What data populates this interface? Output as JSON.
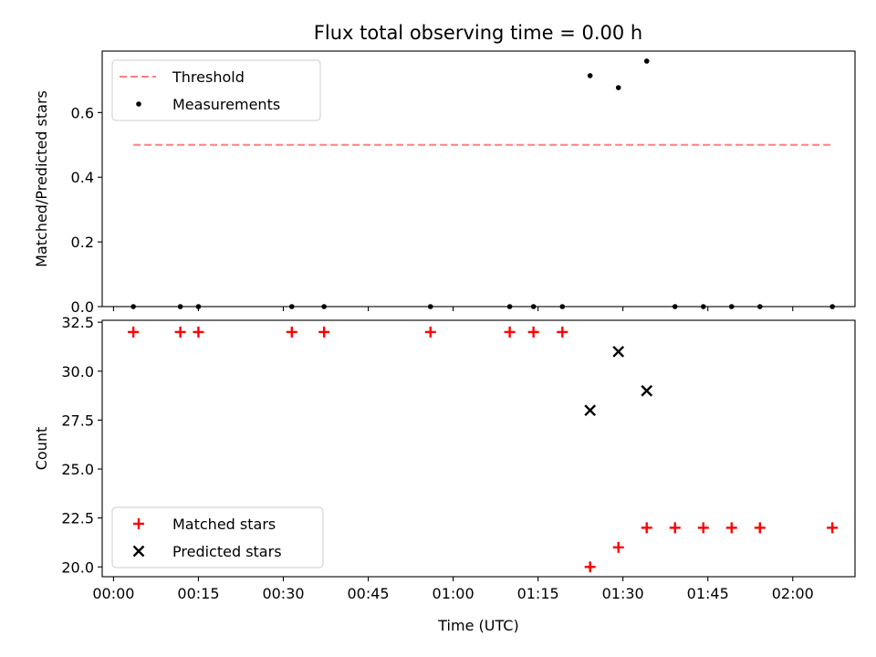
{
  "title": "Flux total observing time = 0.00 h",
  "chart_data": [
    {
      "type": "scatter",
      "ylabel": "Matched/Predicted stars",
      "xlabel": "",
      "xlim": [
        -2,
        131
      ],
      "ylim": [
        0,
        0.79
      ],
      "yticks": [
        0.0,
        0.2,
        0.4,
        0.6
      ],
      "ytick_labels": [
        "0.0",
        "0.2",
        "0.4",
        "0.6"
      ],
      "xticks": [
        0,
        15,
        30,
        45,
        60,
        75,
        90,
        105,
        120
      ],
      "legend": {
        "position": "upper-left",
        "entries": [
          {
            "label": "Threshold",
            "style": "dashed-line",
            "color": "#ff7f7f"
          },
          {
            "label": "Measurements",
            "style": "dot",
            "color": "#000000"
          }
        ]
      },
      "series": [
        {
          "name": "Threshold",
          "kind": "line",
          "color": "#ff7f7f",
          "x": [
            3.5,
            127
          ],
          "y": [
            0.5,
            0.5
          ]
        },
        {
          "name": "Measurements",
          "kind": "dot",
          "color": "#000000",
          "x": [
            3.5,
            11.8,
            15.0,
            31.5,
            37.2,
            56.0,
            70.0,
            74.2,
            79.3,
            84.2,
            89.2,
            94.2,
            99.2,
            104.2,
            109.2,
            114.2,
            127.0
          ],
          "y": [
            0,
            0,
            0,
            0,
            0,
            0,
            0,
            0,
            0,
            0.714,
            0.677,
            0.759,
            0,
            0,
            0,
            0,
            0
          ]
        }
      ]
    },
    {
      "type": "scatter",
      "ylabel": "Count",
      "xlabel": "Time (UTC)",
      "xlim": [
        -2,
        131
      ],
      "ylim": [
        19.5,
        32.6
      ],
      "yticks": [
        20.0,
        22.5,
        25.0,
        27.5,
        30.0,
        32.5
      ],
      "ytick_labels": [
        "20.0",
        "22.5",
        "25.0",
        "27.5",
        "30.0",
        "32.5"
      ],
      "xticks": [
        0,
        15,
        30,
        45,
        60,
        75,
        90,
        105,
        120
      ],
      "xtick_labels": [
        "00:00",
        "00:15",
        "00:30",
        "00:45",
        "01:00",
        "01:15",
        "01:30",
        "01:45",
        "02:00"
      ],
      "legend": {
        "position": "lower-left",
        "entries": [
          {
            "label": "Matched stars",
            "style": "plus",
            "color": "#ff0000"
          },
          {
            "label": "Predicted stars",
            "style": "x",
            "color": "#000000"
          }
        ]
      },
      "series": [
        {
          "name": "Matched stars",
          "kind": "plus",
          "color": "#ff0000",
          "x": [
            3.5,
            11.8,
            15.0,
            31.5,
            37.2,
            56.0,
            70.0,
            74.2,
            79.3,
            84.2,
            89.2,
            94.2,
            99.2,
            104.2,
            109.2,
            114.2,
            127.0
          ],
          "y": [
            32,
            32,
            32,
            32,
            32,
            32,
            32,
            32,
            32,
            20,
            21,
            22,
            22,
            22,
            22,
            22,
            22
          ]
        },
        {
          "name": "Predicted stars",
          "kind": "x",
          "color": "#000000",
          "x": [
            84.2,
            89.2,
            94.2
          ],
          "y": [
            28,
            31,
            29
          ]
        }
      ]
    }
  ]
}
